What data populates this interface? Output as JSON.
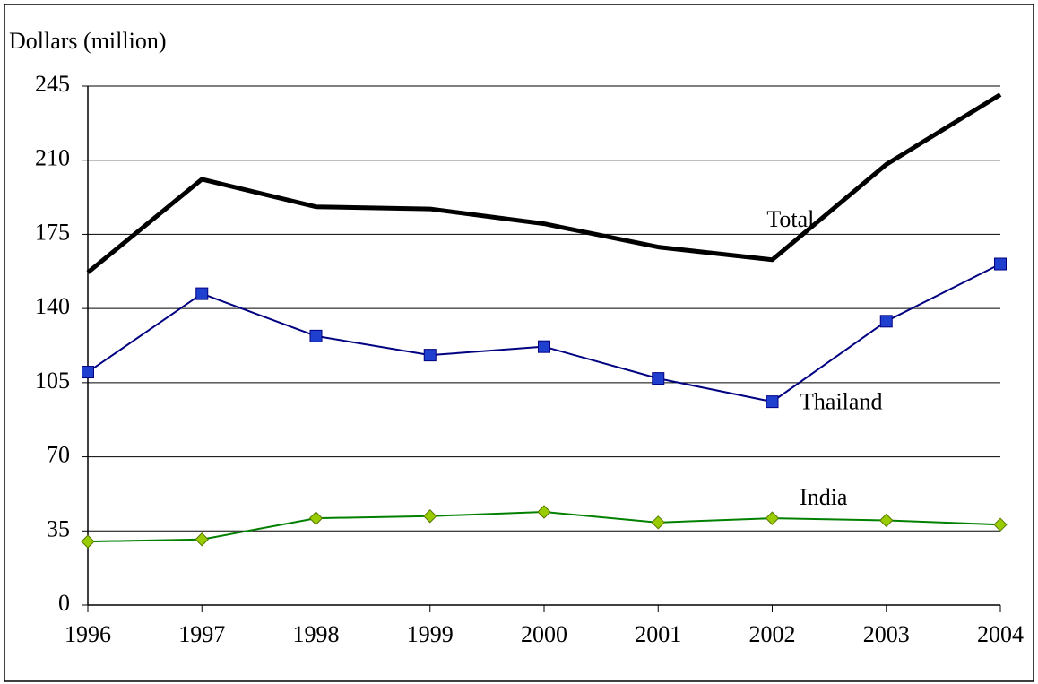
{
  "chart_data": {
    "type": "line",
    "y_label": "Dollars (million)",
    "categories": [
      "1996",
      "1997",
      "1998",
      "1999",
      "2000",
      "2001",
      "2002",
      "2003",
      "2004"
    ],
    "series": [
      {
        "name": "Total",
        "color": "#000000",
        "marker": "none",
        "values": [
          157,
          201,
          188,
          187,
          180,
          169,
          163,
          208,
          241
        ]
      },
      {
        "name": "Thailand",
        "color": "#000080",
        "marker": "square",
        "marker_color": "#1f3fcf",
        "values": [
          110,
          147,
          127,
          118,
          122,
          107,
          96,
          134,
          161
        ]
      },
      {
        "name": "India",
        "color": "#008000",
        "marker": "diamond",
        "marker_color": "#99cc00",
        "values": [
          30,
          31,
          41,
          42,
          44,
          39,
          41,
          40,
          38
        ]
      }
    ],
    "ylim": [
      0,
      245
    ],
    "yticks": [
      0,
      35,
      70,
      105,
      140,
      175,
      210,
      245
    ],
    "grid": true
  }
}
